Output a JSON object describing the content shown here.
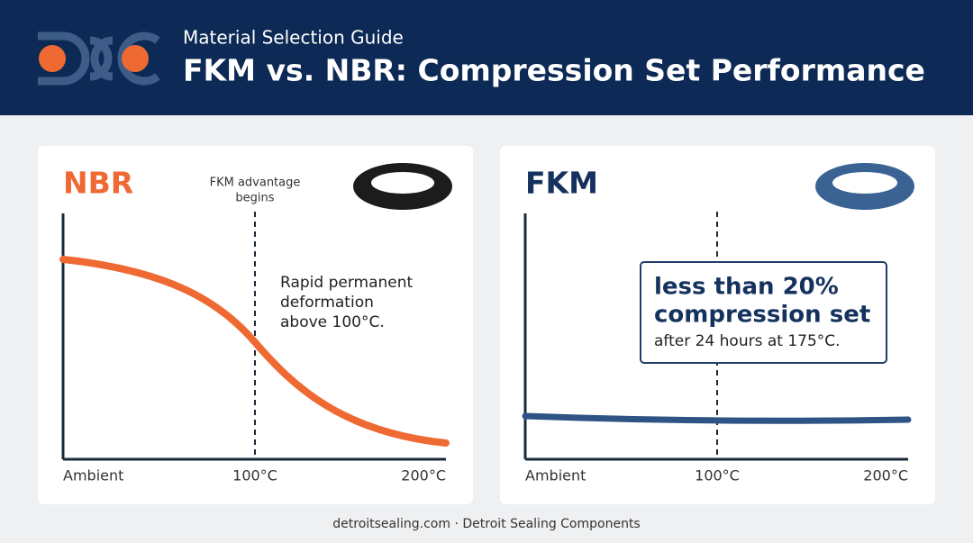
{
  "header": {
    "subtitle": "Material Selection Guide",
    "title": "FKM vs. NBR: Compression Set Performance"
  },
  "panels": [
    {
      "title": "NBR",
      "marker_label": [
        "FKM advantage",
        "begins"
      ],
      "note": [
        "Rapid permanent",
        "deformation",
        "above 100°C."
      ],
      "x_labels": [
        "Ambient",
        "100°C",
        "200°C"
      ]
    },
    {
      "title": "FKM",
      "callout": [
        "less than 20%",
        "compression set",
        "after 24 hours at 175°C."
      ],
      "x_labels": [
        "Ambient",
        "100°C",
        "200°C"
      ]
    }
  ],
  "footer": "detroitsealing.com · Detroit Sealing Components"
}
